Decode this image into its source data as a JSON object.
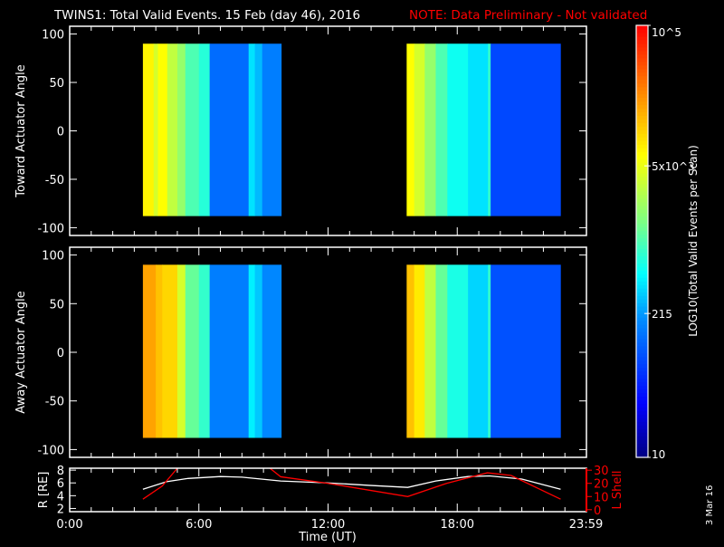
{
  "chart_data": {
    "type": "heatmap",
    "title": "TWINS1: Total Valid Events. 15 Feb (day  46), 2016",
    "note": "NOTE: Data Preliminary - Not validated",
    "date_stamp": "3 Mar 16",
    "xlabel": "Time (UT)",
    "xlim_hours": [
      0,
      24
    ],
    "xticks": [
      {
        "h": 0,
        "label": "0:00"
      },
      {
        "h": 6,
        "label": "6:00"
      },
      {
        "h": 12,
        "label": "12:00"
      },
      {
        "h": 18,
        "label": "18:00"
      },
      {
        "h": 23.98,
        "label": "23:59"
      }
    ],
    "colorbar": {
      "label": "LOG10(Total Valid Events per Scan)",
      "range_log10": [
        1,
        5
      ],
      "ticks": [
        {
          "log": 5,
          "label": "10^5"
        },
        {
          "log": 3.699,
          "label": "5x10^3"
        },
        {
          "log": 2.332,
          "label": "215"
        },
        {
          "log": 1,
          "label": "10"
        }
      ],
      "stops": [
        [
          1,
          "#000080"
        ],
        [
          1.5,
          "#0000ff"
        ],
        [
          2.3,
          "#0090ff"
        ],
        [
          2.7,
          "#00ffff"
        ],
        [
          3.2,
          "#80ff80"
        ],
        [
          3.8,
          "#ffff00"
        ],
        [
          4.3,
          "#ff9900"
        ],
        [
          5,
          "#ff0000"
        ]
      ]
    },
    "panels": [
      {
        "ylabel": "Toward Actuator Angle",
        "ylim": [
          -108,
          108
        ],
        "yticks": [
          100,
          50,
          0,
          -50,
          -100
        ],
        "angle_range": [
          -88,
          90
        ],
        "columns": [
          [
            3.4,
            3.9,
            3.85
          ],
          [
            3.9,
            4.1,
            3.6
          ],
          [
            4.1,
            4.53,
            3.8
          ],
          [
            4.53,
            5.0,
            3.5
          ],
          [
            5.0,
            5.37,
            3.3
          ],
          [
            5.37,
            6.0,
            3.0
          ],
          [
            6.0,
            6.5,
            2.85
          ],
          [
            6.5,
            8.31,
            2.1
          ],
          [
            8.31,
            8.6,
            2.6
          ],
          [
            8.6,
            8.94,
            2.45
          ],
          [
            8.94,
            9.82,
            2.2
          ],
          [
            15.65,
            16.0,
            3.8
          ],
          [
            16.0,
            16.49,
            3.6
          ],
          [
            16.49,
            17.0,
            3.3
          ],
          [
            17.0,
            17.54,
            3.0
          ],
          [
            17.54,
            18.5,
            2.75
          ],
          [
            18.5,
            19.43,
            2.6
          ],
          [
            19.43,
            19.55,
            2.9
          ],
          [
            19.55,
            22.79,
            1.9
          ]
        ]
      },
      {
        "ylabel": "Away Actuator Angle",
        "ylim": [
          -108,
          108
        ],
        "yticks": [
          100,
          50,
          0,
          -50,
          -100
        ],
        "angle_range": [
          -88,
          90
        ],
        "columns": [
          [
            3.4,
            4.0,
            4.25
          ],
          [
            4.0,
            4.3,
            4.1
          ],
          [
            4.3,
            5.0,
            4.0
          ],
          [
            5.0,
            5.37,
            3.6
          ],
          [
            5.37,
            6.0,
            3.1
          ],
          [
            6.0,
            6.5,
            2.9
          ],
          [
            6.5,
            8.31,
            2.2
          ],
          [
            8.31,
            8.6,
            2.65
          ],
          [
            8.6,
            8.94,
            2.5
          ],
          [
            8.94,
            9.82,
            2.25
          ],
          [
            15.65,
            16.0,
            4.1
          ],
          [
            16.0,
            16.49,
            3.9
          ],
          [
            16.49,
            17.0,
            3.5
          ],
          [
            17.0,
            17.54,
            3.1
          ],
          [
            17.54,
            18.5,
            2.8
          ],
          [
            18.5,
            19.43,
            2.55
          ],
          [
            19.43,
            19.55,
            2.9
          ],
          [
            19.55,
            22.79,
            1.95
          ]
        ]
      }
    ],
    "orbit": {
      "ylabel_left": "R [RE]",
      "ylabel_right": "L Shell",
      "ylim_left": [
        1.5,
        8.3
      ],
      "yticks_left": [
        2,
        4,
        6,
        8
      ],
      "ylim_right": [
        -1.5,
        31.5
      ],
      "yticks_right": [
        0,
        10,
        20,
        30
      ],
      "R": [
        [
          3.4,
          5.0
        ],
        [
          4.5,
          6.2
        ],
        [
          5.5,
          6.7
        ],
        [
          7.0,
          7.0
        ],
        [
          8.0,
          6.9
        ],
        [
          9.8,
          6.3
        ],
        [
          12.0,
          6.0
        ],
        [
          14.0,
          5.6
        ],
        [
          15.7,
          5.3
        ],
        [
          17.0,
          6.3
        ],
        [
          18.5,
          7.0
        ],
        [
          19.5,
          7.1
        ],
        [
          21.0,
          6.6
        ],
        [
          22.8,
          5.0
        ]
      ],
      "L": [
        [
          [
            3.4,
            8
          ],
          [
            4.3,
            18
          ],
          [
            5.0,
            31.5
          ]
        ],
        [
          [
            9.3,
            31.5
          ],
          [
            9.8,
            25
          ],
          [
            12.0,
            20
          ],
          [
            15.7,
            10
          ],
          [
            17.5,
            20
          ],
          [
            19.4,
            28
          ],
          [
            20.5,
            26
          ],
          [
            22.8,
            8
          ]
        ]
      ]
    }
  }
}
